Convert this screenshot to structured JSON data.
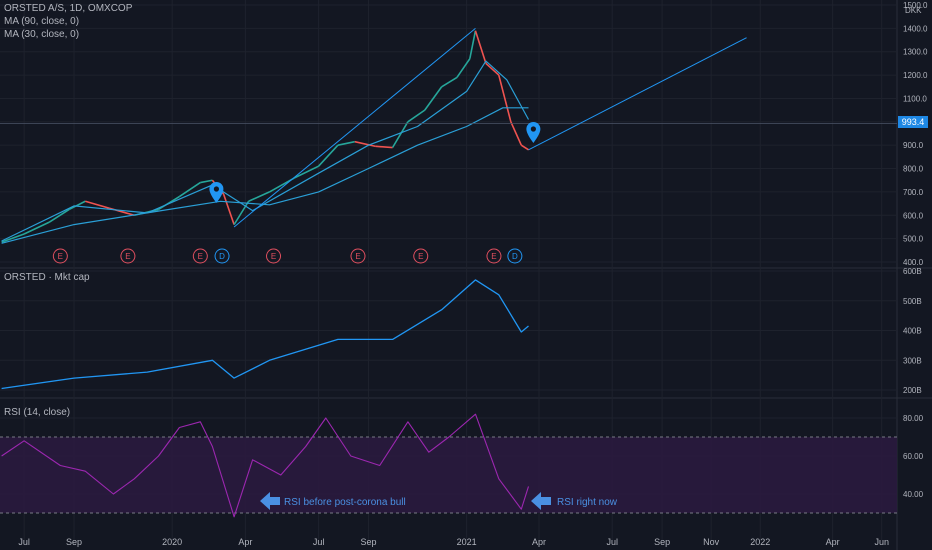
{
  "header": {
    "symbol": "ORSTED A/S, 1D, OMXCOP",
    "ma90": "MA (90, close, 0)",
    "ma30": "MA (30, close, 0)",
    "currency": "DKK"
  },
  "price_tag": "993.4",
  "mktcap_title": "ORSTED · Mkt cap",
  "rsi_title": "RSI (14, close)",
  "annotations": {
    "rsi_before": "RSI before post-corona bull",
    "rsi_now": "RSI right now"
  },
  "colors": {
    "background": "#131722",
    "accent": "#2196f3",
    "ma": "#2a9fd6",
    "rsi": "#9c27b0",
    "earnings": "#e04f5f",
    "dividend": "#2196f3",
    "up": "#26a69a",
    "down": "#ef5350"
  },
  "chart_data": [
    {
      "type": "line",
      "panel": "price",
      "title": "ORSTED A/S, 1D, OMXCOP",
      "y_unit": "DKK",
      "y_ticks": [
        "400.0",
        "500.0",
        "600.0",
        "700.0",
        "800.0",
        "900.0",
        "1000.0",
        "1100.0",
        "1200.0",
        "1300.0",
        "1400.0",
        "1500.0"
      ],
      "ylim": [
        400,
        1500
      ],
      "x_ticks": [
        "Jul",
        "Sep",
        "2020",
        "Apr",
        "Jul",
        "Sep",
        "2021",
        "Apr",
        "Jul",
        "Sep",
        "Nov",
        "2022",
        "Apr",
        "Jun"
      ],
      "series": [
        {
          "name": "ORSTED A/S",
          "values": [
            [
              "2019-06-03",
              485
            ],
            [
              "2019-07-01",
              520
            ],
            [
              "2019-08-01",
              570
            ],
            [
              "2019-08-26",
              625
            ],
            [
              "2019-09-15",
              660
            ],
            [
              "2019-10-15",
              630
            ],
            [
              "2019-11-15",
              600
            ],
            [
              "2019-12-15",
              625
            ],
            [
              "2020-01-10",
              680
            ],
            [
              "2020-02-05",
              740
            ],
            [
              "2020-02-20",
              750
            ],
            [
              "2020-03-05",
              690
            ],
            [
              "2020-03-18",
              560
            ],
            [
              "2020-04-05",
              660
            ],
            [
              "2020-05-01",
              700
            ],
            [
              "2020-06-01",
              760
            ],
            [
              "2020-07-01",
              810
            ],
            [
              "2020-07-25",
              900
            ],
            [
              "2020-08-15",
              915
            ],
            [
              "2020-09-10",
              895
            ],
            [
              "2020-10-01",
              890
            ],
            [
              "2020-10-20",
              1000
            ],
            [
              "2020-11-10",
              1050
            ],
            [
              "2020-12-01",
              1150
            ],
            [
              "2020-12-20",
              1190
            ],
            [
              "2021-01-05",
              1270
            ],
            [
              "2021-01-12",
              1390
            ],
            [
              "2021-01-25",
              1250
            ],
            [
              "2021-02-10",
              1200
            ],
            [
              "2021-02-25",
              1000
            ],
            [
              "2021-03-10",
              900
            ],
            [
              "2021-03-19",
              880
            ]
          ]
        },
        {
          "name": "MA (90, close, 0)",
          "values": [
            [
              "2019-06-03",
              480
            ],
            [
              "2019-09-01",
              560
            ],
            [
              "2019-12-01",
              610
            ],
            [
              "2020-03-01",
              660
            ],
            [
              "2020-05-01",
              645
            ],
            [
              "2020-07-01",
              700
            ],
            [
              "2020-09-01",
              800
            ],
            [
              "2020-11-01",
              900
            ],
            [
              "2021-01-01",
              980
            ],
            [
              "2021-02-15",
              1060
            ],
            [
              "2021-03-19",
              1060
            ]
          ]
        },
        {
          "name": "MA (30, close, 0)",
          "values": [
            [
              "2019-06-03",
              490
            ],
            [
              "2019-09-01",
              640
            ],
            [
              "2019-12-01",
              610
            ],
            [
              "2020-02-20",
              730
            ],
            [
              "2020-04-10",
              620
            ],
            [
              "2020-07-01",
              780
            ],
            [
              "2020-09-01",
              900
            ],
            [
              "2020-11-01",
              980
            ],
            [
              "2021-01-01",
              1130
            ],
            [
              "2021-01-25",
              1260
            ],
            [
              "2021-02-20",
              1180
            ],
            [
              "2021-03-19",
              1010
            ]
          ]
        }
      ],
      "events": [
        {
          "label": "E",
          "date": "2019-08-15"
        },
        {
          "label": "E",
          "date": "2019-11-07"
        },
        {
          "label": "E",
          "date": "2020-02-05"
        },
        {
          "label": "D",
          "date": "2020-03-03"
        },
        {
          "label": "E",
          "date": "2020-05-06"
        },
        {
          "label": "E",
          "date": "2020-08-19"
        },
        {
          "label": "E",
          "date": "2020-11-05"
        },
        {
          "label": "E",
          "date": "2021-02-04"
        },
        {
          "label": "D",
          "date": "2021-03-02"
        }
      ],
      "trendlines": [
        {
          "points": [
            [
              "2020-03-18",
              550
            ],
            [
              "2021-01-12",
              1400
            ]
          ]
        },
        {
          "points": [
            [
              "2021-03-19",
              880
            ],
            [
              "2021-12-15",
              1360
            ]
          ]
        }
      ],
      "current_price": 993.4
    },
    {
      "type": "line",
      "panel": "market_cap",
      "title": "ORSTED · Mkt cap",
      "y_ticks": [
        "200B",
        "300B",
        "400B",
        "500B",
        "600B"
      ],
      "ylim": [
        200,
        600
      ],
      "series": [
        {
          "name": "ORSTED",
          "values": [
            [
              "2019-06-03",
              205
            ],
            [
              "2019-09-01",
              240
            ],
            [
              "2019-12-01",
              260
            ],
            [
              "2020-02-20",
              300
            ],
            [
              "2020-03-18",
              240
            ],
            [
              "2020-05-01",
              300
            ],
            [
              "2020-07-25",
              370
            ],
            [
              "2020-10-01",
              370
            ],
            [
              "2020-12-01",
              470
            ],
            [
              "2021-01-12",
              570
            ],
            [
              "2021-02-10",
              520
            ],
            [
              "2021-03-10",
              395
            ],
            [
              "2021-03-19",
              415
            ]
          ]
        }
      ]
    },
    {
      "type": "line",
      "panel": "rsi",
      "title": "RSI (14, close)",
      "y_ticks": [
        "40.00",
        "60.00",
        "80.00"
      ],
      "ylim": [
        25,
        90
      ],
      "bands": [
        30,
        70
      ],
      "series": [
        {
          "name": "RSI",
          "values": [
            [
              "2019-06-03",
              60
            ],
            [
              "2019-07-01",
              68
            ],
            [
              "2019-08-15",
              55
            ],
            [
              "2019-09-15",
              52
            ],
            [
              "2019-10-20",
              40
            ],
            [
              "2019-11-15",
              48
            ],
            [
              "2019-12-15",
              60
            ],
            [
              "2020-01-10",
              75
            ],
            [
              "2020-02-05",
              78
            ],
            [
              "2020-02-20",
              65
            ],
            [
              "2020-03-18",
              28
            ],
            [
              "2020-04-10",
              58
            ],
            [
              "2020-05-15",
              50
            ],
            [
              "2020-06-15",
              65
            ],
            [
              "2020-07-10",
              80
            ],
            [
              "2020-08-10",
              60
            ],
            [
              "2020-09-15",
              55
            ],
            [
              "2020-10-20",
              78
            ],
            [
              "2020-11-15",
              62
            ],
            [
              "2020-12-10",
              70
            ],
            [
              "2021-01-12",
              82
            ],
            [
              "2021-02-10",
              48
            ],
            [
              "2021-03-10",
              32
            ],
            [
              "2021-03-19",
              44
            ]
          ]
        }
      ]
    }
  ]
}
